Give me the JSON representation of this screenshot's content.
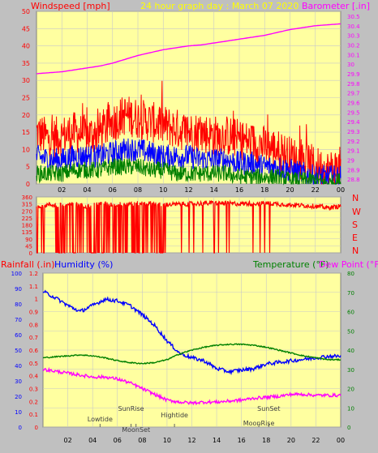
{
  "header": {
    "wind_title": "Windspeed [mph]",
    "date_title": "24 hour graph day : March 07 2020",
    "baro_title": "Barometer [.in]"
  },
  "lower_header": {
    "rain_title": "Rainfall (.in)",
    "humidity_title": "Humidity (%)",
    "temp_title": "Temperature (°F)",
    "dew_title": "Dew Point (°F)"
  },
  "compass": [
    "N",
    "W",
    "S",
    "E",
    "N"
  ],
  "events": [
    {
      "label": "Lowtide",
      "x": 4.6
    },
    {
      "label": "SunRise",
      "x": 7.1
    },
    {
      "label": "MoonSet",
      "x": 7.5
    },
    {
      "label": "Hightide",
      "x": 10.6
    },
    {
      "label": "SunSet",
      "x": 18.2
    },
    {
      "label": "MoonRise",
      "x": 17.4
    }
  ],
  "colors": {
    "bg": "#c0c0c0",
    "plot": "#ffffa0",
    "grid": "#c8c8c8",
    "wind_gust": "#ff0000",
    "wind_avg": "#0000ff",
    "wind_low": "#008000",
    "barometer": "#ff00ff",
    "direction": "#ff0000",
    "humidity": "#0000ff",
    "temperature": "#008000",
    "dewpoint": "#ff00ff",
    "axis_text": "#000000",
    "title_wind": "#ff0000",
    "title_date": "#ffff00",
    "title_baro": "#ff00ff"
  },
  "chart_data": [
    {
      "type": "line",
      "x_ticks": [
        "02",
        "04",
        "06",
        "08",
        "10",
        "12",
        "14",
        "16",
        "18",
        "20",
        "22",
        "00"
      ],
      "xlim": [
        0,
        24
      ],
      "left_axis": {
        "label": "Windspeed [mph]",
        "ticks": [
          0,
          5,
          10,
          15,
          20,
          25,
          30,
          35,
          40,
          45,
          50
        ],
        "ylim": [
          0,
          50
        ]
      },
      "right_axis": {
        "label": "Barometer [.in]",
        "ticks": [
          28.8,
          28.9,
          29,
          29.1,
          29.2,
          29.3,
          29.4,
          29.5,
          29.6,
          29.7,
          29.8,
          29.9,
          30,
          30.1,
          30.2,
          30.3,
          30.4,
          30.5
        ],
        "ylim": [
          28.75,
          30.55
        ]
      },
      "series": [
        {
          "axis": "left",
          "x": [
            0,
            1,
            2,
            3,
            4,
            5,
            6,
            7,
            8,
            9,
            10,
            11,
            12,
            13,
            14,
            15,
            16,
            17,
            18,
            19,
            20,
            21,
            22,
            23,
            24
          ],
          "values": [
            15,
            13,
            14,
            15,
            14,
            15,
            18,
            20,
            19,
            18,
            17,
            16,
            15,
            15,
            14,
            14,
            13,
            12,
            11,
            10,
            8,
            7,
            5,
            4,
            5
          ]
        },
        {
          "axis": "left",
          "x": [
            0,
            1,
            2,
            3,
            4,
            5,
            6,
            7,
            8,
            9,
            10,
            11,
            12,
            13,
            14,
            15,
            16,
            17,
            18,
            19,
            20,
            21,
            22,
            23,
            24
          ],
          "values": [
            8,
            7,
            7,
            8,
            8,
            8,
            9,
            10,
            10,
            9,
            8,
            8,
            8,
            7,
            7,
            7,
            6,
            6,
            5,
            5,
            4,
            3,
            2,
            2,
            2
          ]
        },
        {
          "axis": "left",
          "x": [
            0,
            1,
            2,
            3,
            4,
            5,
            6,
            7,
            8,
            9,
            10,
            11,
            12,
            13,
            14,
            15,
            16,
            17,
            18,
            19,
            20,
            21,
            22,
            23,
            24
          ],
          "values": [
            3,
            3,
            3,
            4,
            4,
            4,
            5,
            5,
            5,
            4,
            4,
            3,
            3,
            3,
            3,
            3,
            2,
            2,
            2,
            2,
            1,
            1,
            1,
            0,
            1
          ]
        },
        {
          "axis": "right",
          "x": [
            0,
            1,
            2,
            3,
            4,
            5,
            6,
            7,
            8,
            9,
            10,
            11,
            12,
            13,
            14,
            15,
            16,
            17,
            18,
            19,
            20,
            21,
            22,
            23,
            24
          ],
          "values": [
            29.9,
            29.91,
            29.92,
            29.94,
            29.96,
            29.98,
            30.01,
            30.05,
            30.09,
            30.12,
            30.15,
            30.17,
            30.19,
            30.2,
            30.22,
            30.24,
            30.26,
            30.28,
            30.3,
            30.33,
            30.36,
            30.38,
            30.4,
            30.41,
            30.42
          ]
        }
      ]
    },
    {
      "type": "scatter",
      "x_ticks": [
        "02",
        "04",
        "06",
        "08",
        "10",
        "12",
        "14",
        "16",
        "18",
        "20",
        "22",
        "00"
      ],
      "xlim": [
        0,
        24
      ],
      "ylim": [
        0,
        360
      ],
      "y_ticks": [
        0,
        45,
        90,
        135,
        180,
        225,
        270,
        315,
        360
      ],
      "values_note_free": true,
      "series": [
        {
          "x": [
            0,
            1,
            2,
            3,
            4,
            5,
            6,
            7,
            8,
            9,
            10,
            11,
            12,
            13,
            14,
            15,
            16,
            17,
            18,
            19,
            20,
            21,
            22,
            23,
            24
          ],
          "values": [
            300,
            310,
            305,
            315,
            300,
            320,
            310,
            315,
            320,
            318,
            310,
            312,
            315,
            318,
            320,
            318,
            316,
            318,
            320,
            315,
            310,
            305,
            300,
            290,
            300
          ]
        }
      ]
    },
    {
      "type": "line",
      "x_ticks": [
        "02",
        "04",
        "06",
        "08",
        "10",
        "12",
        "14",
        "16",
        "18",
        "20",
        "22",
        "00"
      ],
      "xlim": [
        0,
        24
      ],
      "rain_axis": {
        "label": "Rainfall (.in)",
        "ticks": [
          0,
          0.1,
          0.2,
          0.3,
          0.4,
          0.5,
          0.6,
          0.7,
          0.8,
          0.9,
          1,
          1.1,
          1.2
        ],
        "ylim": [
          0,
          1.2
        ]
      },
      "humidity_axis": {
        "label": "Humidity (%)",
        "ticks": [
          0,
          10,
          20,
          30,
          40,
          50,
          60,
          70,
          80,
          90,
          100
        ],
        "ylim": [
          0,
          100
        ]
      },
      "temp_axis": {
        "label": "Temperature (°F)",
        "ticks": [
          0,
          10,
          20,
          30,
          40,
          50,
          60,
          70,
          80
        ],
        "ylim": [
          0,
          80
        ]
      },
      "series": [
        {
          "axis": "humidity",
          "x": [
            0,
            1,
            2,
            3,
            4,
            5,
            6,
            7,
            8,
            9,
            10,
            11,
            12,
            13,
            14,
            15,
            16,
            17,
            18,
            19,
            20,
            21,
            22,
            23,
            24
          ],
          "values": [
            88,
            84,
            79,
            75,
            79,
            83,
            82,
            79,
            73,
            66,
            56,
            48,
            45,
            43,
            38,
            36,
            37,
            38,
            41,
            42,
            43,
            44,
            45,
            46,
            46
          ]
        },
        {
          "axis": "temp",
          "x": [
            0,
            1,
            2,
            3,
            4,
            5,
            6,
            7,
            8,
            9,
            10,
            11,
            12,
            13,
            14,
            15,
            16,
            17,
            18,
            19,
            20,
            21,
            22,
            23,
            24
          ],
          "values": [
            36,
            36.5,
            37,
            37.5,
            37,
            36,
            34.5,
            33.5,
            33,
            33.5,
            35,
            38,
            40,
            41.5,
            42.5,
            43,
            43,
            42.5,
            41.5,
            40,
            38.5,
            37,
            36,
            35,
            35
          ]
        },
        {
          "axis": "temp",
          "x": [
            0,
            1,
            2,
            3,
            4,
            5,
            6,
            7,
            8,
            9,
            10,
            11,
            12,
            13,
            14,
            15,
            16,
            17,
            18,
            19,
            20,
            21,
            22,
            23,
            24
          ],
          "values": [
            30,
            29,
            28,
            27,
            26,
            26,
            25,
            23,
            20,
            17,
            14,
            13,
            12.5,
            13,
            13,
            13.5,
            14,
            15,
            15.5,
            16,
            17,
            17,
            16.5,
            16.5,
            16.5
          ]
        }
      ]
    }
  ]
}
